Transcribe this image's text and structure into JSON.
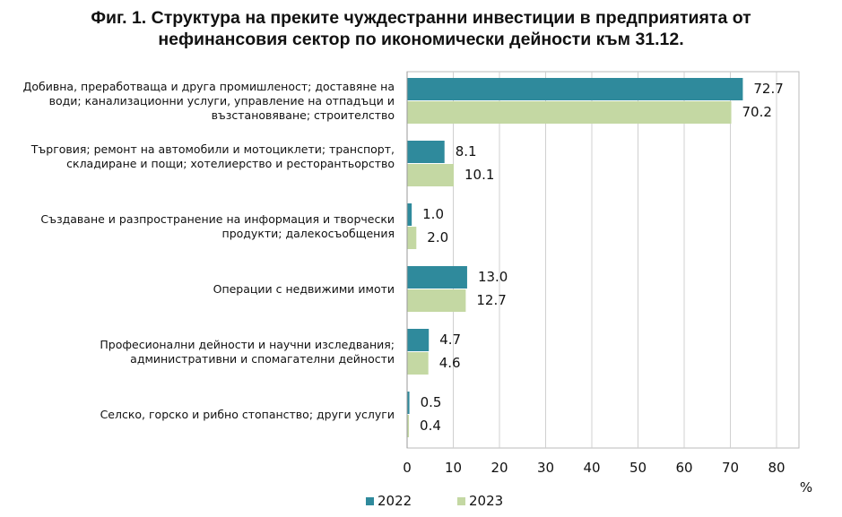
{
  "title_line1": "Фиг. 1. Структура на преките чуждестранни инвестиции в предприятията от",
  "title_line2": "нефинансовия сектор по икономически дейности към 31.12.",
  "chart_data": {
    "type": "bar",
    "orientation": "horizontal",
    "categories": [
      "Добивна, преработваща и друга промишленост; доставяне на води; канализационни услуги, управление на отпадъци и възстановяване; строителство",
      "Търговия; ремонт на автомобили и мотоциклети; транспорт, складиране и пощи; хотелиерство и ресторантьорство",
      "Създаване и разпространение на информация и творчески продукти; далекосъобщения",
      "Операции с недвижими имоти",
      "Професионални дейности и научни изследвания; административни и спомагателни дейности",
      "Селско, горско и рибно стопанство; други услуги"
    ],
    "series": [
      {
        "name": "2022",
        "color": "#2f8a9c",
        "values": [
          72.7,
          8.1,
          1.0,
          13.0,
          4.7,
          0.5
        ],
        "labels": [
          "72.7",
          "8.1",
          "1.0",
          "13.0",
          "4.7",
          "0.5"
        ]
      },
      {
        "name": "2023",
        "color": "#c4d8a3",
        "values": [
          70.2,
          10.1,
          2.0,
          12.7,
          4.6,
          0.4
        ],
        "labels": [
          "70.2",
          "10.1",
          "2.0",
          "12.7",
          "4.6",
          "0.4"
        ]
      }
    ],
    "xticks": [
      "0",
      "10",
      "20",
      "30",
      "40",
      "50",
      "60",
      "70",
      "80"
    ],
    "xlim": [
      0,
      85
    ],
    "xlabel": "%",
    "grid": true,
    "legend": "bottom"
  }
}
